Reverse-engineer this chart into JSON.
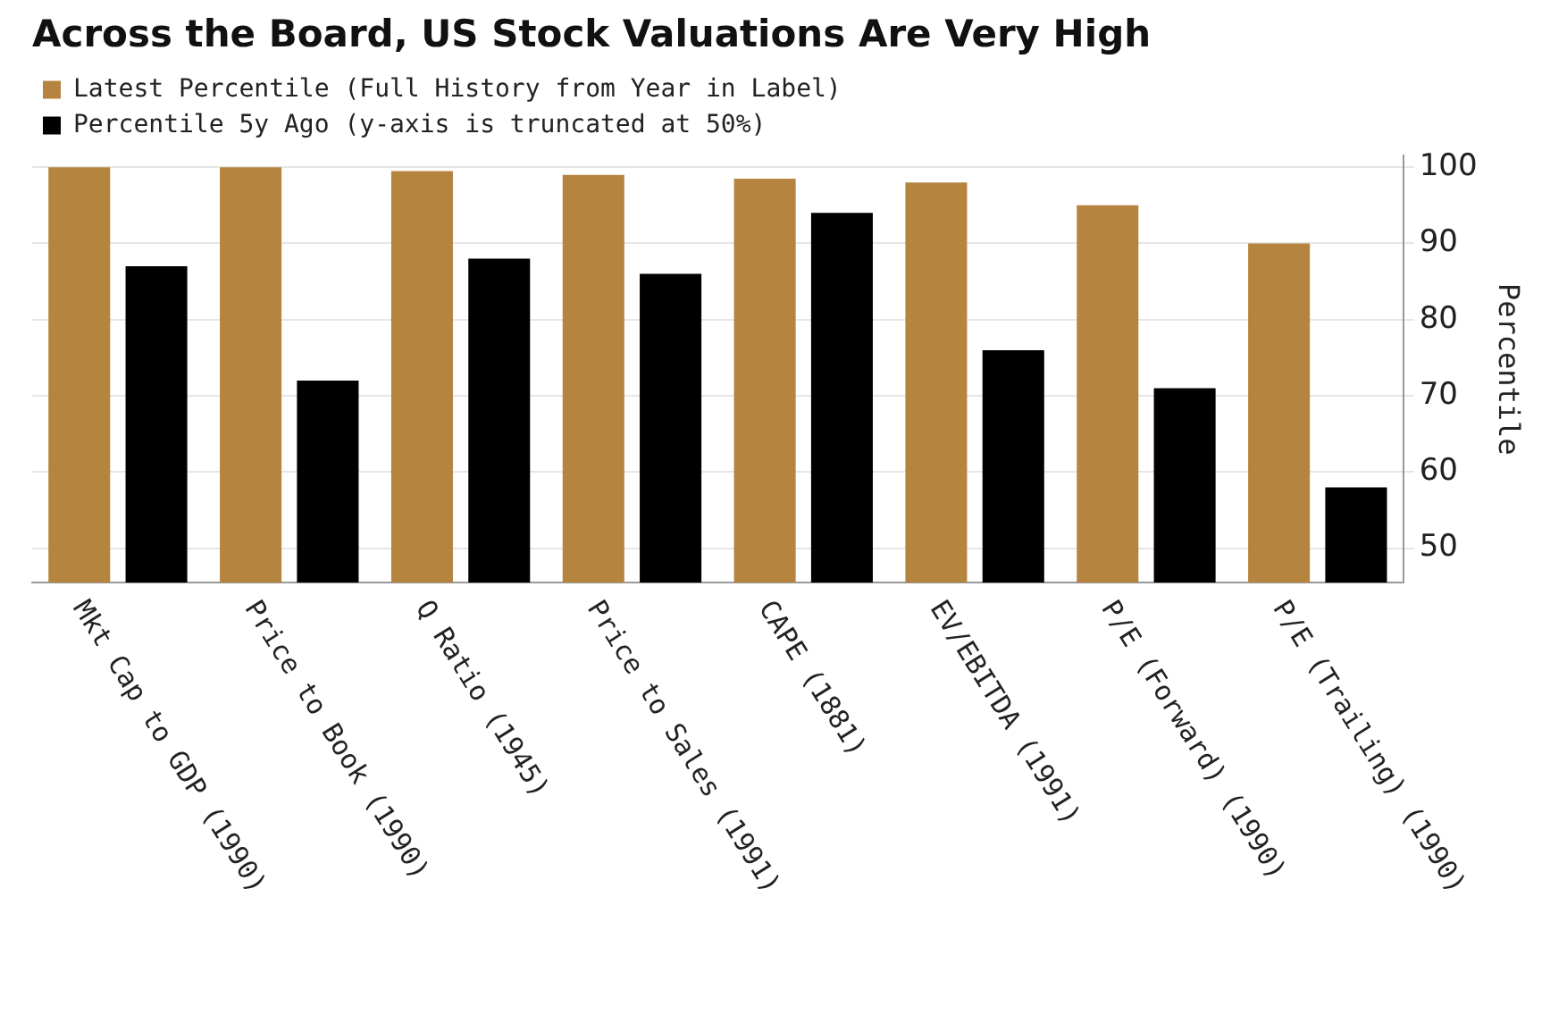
{
  "chart_data": {
    "type": "bar",
    "title": "Across the Board, US Stock Valuations Are Very High",
    "ylabel": "Percentile",
    "categories": [
      "Mkt Cap to GDP (1990)",
      "Price to Book (1990)",
      "Q Ratio (1945)",
      "Price to Sales (1991)",
      "CAPE (1881)",
      "EV/EBITDA (1991)",
      "P/E (Forward) (1990)",
      "P/E (Trailing) (1990)"
    ],
    "series": [
      {
        "name": "Latest Percentile (Full History from Year in Label)",
        "color": "#b5843f",
        "values": [
          100,
          100,
          99.5,
          99,
          98.5,
          98,
          95,
          90
        ]
      },
      {
        "name": "Percentile 5y Ago (y-axis is truncated at 50%)",
        "color": "#000000",
        "values": [
          87,
          72,
          88,
          86,
          94,
          76,
          71,
          58
        ]
      }
    ],
    "ylim": [
      45.5,
      101.5
    ],
    "yticks": [
      50,
      60,
      70,
      80,
      90,
      100
    ],
    "grid": "y",
    "legend": "top left"
  }
}
